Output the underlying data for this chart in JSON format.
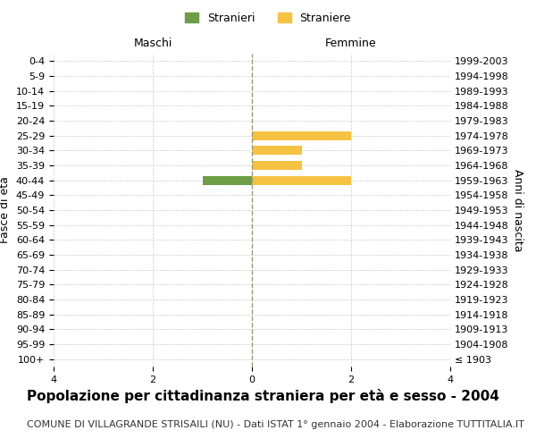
{
  "age_groups": [
    "100+",
    "95-99",
    "90-94",
    "85-89",
    "80-84",
    "75-79",
    "70-74",
    "65-69",
    "60-64",
    "55-59",
    "50-54",
    "45-49",
    "40-44",
    "35-39",
    "30-34",
    "25-29",
    "20-24",
    "15-19",
    "10-14",
    "5-9",
    "0-4"
  ],
  "birth_years": [
    "≤ 1903",
    "1904-1908",
    "1909-1913",
    "1914-1918",
    "1919-1923",
    "1924-1928",
    "1929-1933",
    "1934-1938",
    "1939-1943",
    "1944-1948",
    "1949-1953",
    "1954-1958",
    "1959-1963",
    "1964-1968",
    "1969-1973",
    "1974-1978",
    "1979-1983",
    "1984-1988",
    "1989-1993",
    "1994-1998",
    "1999-2003"
  ],
  "males": [
    0,
    0,
    0,
    0,
    0,
    0,
    0,
    0,
    0,
    0,
    0,
    0,
    1,
    0,
    0,
    0,
    0,
    0,
    0,
    0,
    0
  ],
  "females": [
    0,
    0,
    0,
    0,
    0,
    0,
    0,
    0,
    0,
    0,
    0,
    0,
    2,
    1,
    1,
    2,
    0,
    0,
    0,
    0,
    0
  ],
  "male_color": "#6d9e47",
  "female_color": "#f5c242",
  "xlim": 4,
  "title": "Popolazione per cittadinanza straniera per età e sesso - 2004",
  "subtitle": "COMUNE DI VILLAGRANDE STRISAILI (NU) - Dati ISTAT 1° gennaio 2004 - Elaborazione TUTTITALIA.IT",
  "ylabel_left": "Fasce di età",
  "ylabel_right": "Anni di nascita",
  "xlabel_left": "Maschi",
  "xlabel_right": "Femmine",
  "legend_male": "Stranieri",
  "legend_female": "Straniere",
  "bg_color": "#ffffff",
  "grid_color": "#cccccc",
  "center_line_color": "#999977",
  "title_fontsize": 11,
  "subtitle_fontsize": 8,
  "axis_label_fontsize": 9,
  "tick_fontsize": 8,
  "legend_fontsize": 9
}
